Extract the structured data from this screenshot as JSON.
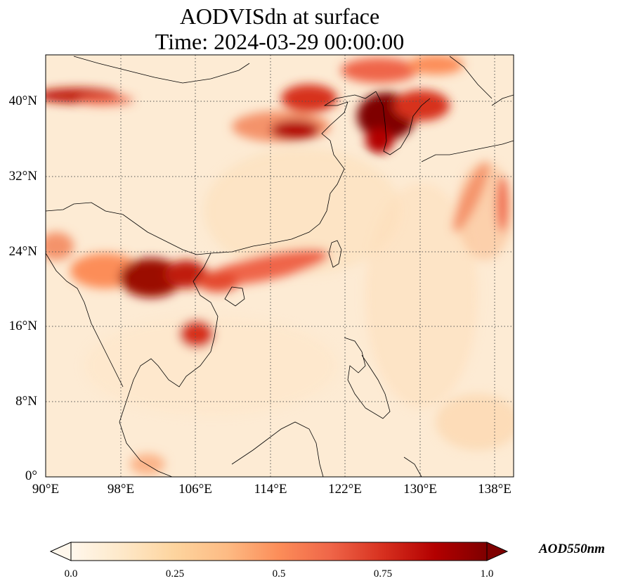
{
  "figure": {
    "title_line1": "AODVISdn at surface",
    "title_line2": "Time: 2024-03-29 00:00:00"
  },
  "map": {
    "projection": "PlateCarree",
    "lon_range": [
      90,
      140
    ],
    "lat_range": [
      0,
      45
    ],
    "gridlines": "dotted",
    "lat_ticks": [
      {
        "value": 0,
        "label": "0°"
      },
      {
        "value": 8,
        "label": "8°N"
      },
      {
        "value": 16,
        "label": "16°N"
      },
      {
        "value": 24,
        "label": "24°N"
      },
      {
        "value": 32,
        "label": "32°N"
      },
      {
        "value": 40,
        "label": "40°N"
      }
    ],
    "lon_ticks": [
      {
        "value": 90,
        "label": "90°E"
      },
      {
        "value": 98,
        "label": "98°E"
      },
      {
        "value": 106,
        "label": "106°E"
      },
      {
        "value": 114,
        "label": "114°E"
      },
      {
        "value": 122,
        "label": "122°E"
      },
      {
        "value": 130,
        "label": "130°E"
      },
      {
        "value": 138,
        "label": "138°E"
      }
    ]
  },
  "colorbar": {
    "label": "AOD550nm",
    "colormap": "OrRd",
    "range": [
      0.0,
      1.0
    ],
    "extend": "both",
    "ticks": [
      "0.0",
      "0.25",
      "0.5",
      "0.75",
      "1.0"
    ],
    "colors": [
      "#fff7ec",
      "#fee8c8",
      "#fdd49e",
      "#fdbb84",
      "#fc8d59",
      "#ef6548",
      "#d7301f",
      "#b30000",
      "#7f0000"
    ]
  }
}
